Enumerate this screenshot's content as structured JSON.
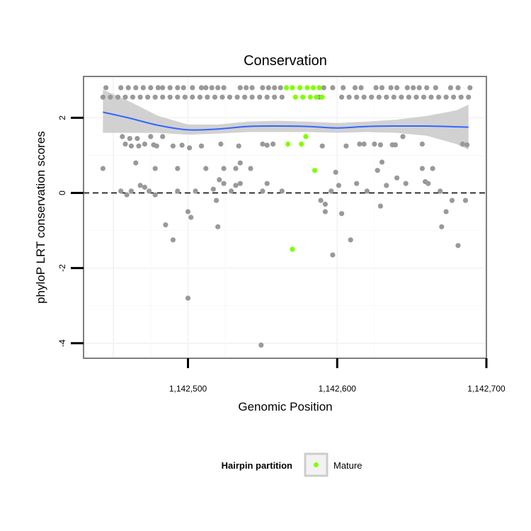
{
  "chart_data": {
    "type": "scatter",
    "title": "Conservation",
    "xlabel": "Genomic Position",
    "ylabel": "phyloP LRT conservation scores",
    "xlim": [
      1142430,
      1142700
    ],
    "ylim": [
      -4.4,
      3.1
    ],
    "x_ticks": [
      {
        "value": 1142500,
        "label": "1,142,500"
      },
      {
        "value": 1142600,
        "label": "1,142,600"
      },
      {
        "value": 1142700,
        "label": "1,142,700"
      }
    ],
    "y_ticks": [
      {
        "value": 2,
        "label": "2"
      },
      {
        "value": 0,
        "label": "0"
      },
      {
        "value": -2,
        "label": "-2"
      },
      {
        "value": -4,
        "label": "-4"
      }
    ],
    "grid": true,
    "reference_line": {
      "y": 0,
      "style": "dashed"
    },
    "legend": {
      "title": "Hairpin partition",
      "position": "bottom",
      "entries": [
        {
          "label": "Mature",
          "color": "#7fff00"
        }
      ]
    },
    "colors": {
      "other": "#999999",
      "mature": "#7fff00",
      "smooth": "#3366ff",
      "band": "#cccccc",
      "panel_border": "#7f7f7f"
    },
    "series": [
      {
        "name": "",
        "color": "#999999",
        "points": [
          [
            1142445,
            2.8
          ],
          [
            1142455,
            2.8
          ],
          [
            1142460,
            2.8
          ],
          [
            1142465,
            2.8
          ],
          [
            1142470,
            2.8
          ],
          [
            1142475,
            2.8
          ],
          [
            1142480,
            2.8
          ],
          [
            1142483,
            2.8
          ],
          [
            1142488,
            2.8
          ],
          [
            1142493,
            2.8
          ],
          [
            1142497,
            2.8
          ],
          [
            1142503,
            2.8
          ],
          [
            1142509,
            2.8
          ],
          [
            1142512,
            2.8
          ],
          [
            1142516,
            2.8
          ],
          [
            1142520,
            2.8
          ],
          [
            1142524,
            2.8
          ],
          [
            1142535,
            2.8
          ],
          [
            1142539,
            2.8
          ],
          [
            1142543,
            2.8
          ],
          [
            1142550,
            2.8
          ],
          [
            1142554,
            2.8
          ],
          [
            1142558,
            2.8
          ],
          [
            1142562,
            2.8
          ],
          [
            1142591,
            2.8
          ],
          [
            1142597,
            2.8
          ],
          [
            1142604,
            2.8
          ],
          [
            1142612,
            2.8
          ],
          [
            1142616,
            2.8
          ],
          [
            1142626,
            2.8
          ],
          [
            1142630,
            2.8
          ],
          [
            1142636,
            2.8
          ],
          [
            1142640,
            2.8
          ],
          [
            1142647,
            2.8
          ],
          [
            1142651,
            2.8
          ],
          [
            1142655,
            2.8
          ],
          [
            1142660,
            2.8
          ],
          [
            1142666,
            2.8
          ],
          [
            1142676,
            2.8
          ],
          [
            1142681,
            2.8
          ],
          [
            1142689,
            2.8
          ],
          [
            1142443,
            2.55
          ],
          [
            1142448,
            2.55
          ],
          [
            1142453,
            2.55
          ],
          [
            1142458,
            2.55
          ],
          [
            1142463,
            2.55
          ],
          [
            1142468,
            2.55
          ],
          [
            1142473,
            2.55
          ],
          [
            1142478,
            2.55
          ],
          [
            1142483,
            2.55
          ],
          [
            1142488,
            2.55
          ],
          [
            1142493,
            2.55
          ],
          [
            1142498,
            2.55
          ],
          [
            1142503,
            2.55
          ],
          [
            1142508,
            2.55
          ],
          [
            1142513,
            2.55
          ],
          [
            1142518,
            2.55
          ],
          [
            1142523,
            2.55
          ],
          [
            1142528,
            2.55
          ],
          [
            1142533,
            2.55
          ],
          [
            1142538,
            2.55
          ],
          [
            1142543,
            2.55
          ],
          [
            1142548,
            2.55
          ],
          [
            1142553,
            2.55
          ],
          [
            1142558,
            2.55
          ],
          [
            1142563,
            2.55
          ],
          [
            1142588,
            2.55
          ],
          [
            1142603,
            2.55
          ],
          [
            1142608,
            2.55
          ],
          [
            1142613,
            2.55
          ],
          [
            1142618,
            2.55
          ],
          [
            1142623,
            2.55
          ],
          [
            1142628,
            2.55
          ],
          [
            1142633,
            2.55
          ],
          [
            1142638,
            2.55
          ],
          [
            1142643,
            2.55
          ],
          [
            1142648,
            2.55
          ],
          [
            1142653,
            2.55
          ],
          [
            1142658,
            2.55
          ],
          [
            1142663,
            2.55
          ],
          [
            1142668,
            2.55
          ],
          [
            1142673,
            2.55
          ],
          [
            1142678,
            2.55
          ],
          [
            1142683,
            2.55
          ],
          [
            1142688,
            2.55
          ],
          [
            1142456,
            1.5
          ],
          [
            1142461,
            1.45
          ],
          [
            1142466,
            1.45
          ],
          [
            1142475,
            1.5
          ],
          [
            1142483,
            1.5
          ],
          [
            1142458,
            1.3
          ],
          [
            1142462,
            1.25
          ],
          [
            1142467,
            1.25
          ],
          [
            1142471,
            1.3
          ],
          [
            1142477,
            1.28
          ],
          [
            1142479,
            1.25
          ],
          [
            1142490,
            1.25
          ],
          [
            1142496,
            1.27
          ],
          [
            1142501,
            1.2
          ],
          [
            1142509,
            1.25
          ],
          [
            1142522,
            1.3
          ],
          [
            1142534,
            1.25
          ],
          [
            1142550,
            1.3
          ],
          [
            1142553,
            1.27
          ],
          [
            1142557,
            1.3
          ],
          [
            1142590,
            1.25
          ],
          [
            1142606,
            1.25
          ],
          [
            1142615,
            1.3
          ],
          [
            1142618,
            1.3
          ],
          [
            1142625,
            1.3
          ],
          [
            1142629,
            1.28
          ],
          [
            1142637,
            1.28
          ],
          [
            1142639,
            1.28
          ],
          [
            1142644,
            1.5
          ],
          [
            1142657,
            1.3
          ],
          [
            1142684,
            1.3
          ],
          [
            1142687,
            1.28
          ],
          [
            1142443,
            0.65
          ],
          [
            1142465,
            0.8
          ],
          [
            1142478,
            0.65
          ],
          [
            1142493,
            0.65
          ],
          [
            1142512,
            0.65
          ],
          [
            1142524,
            0.65
          ],
          [
            1142532,
            0.65
          ],
          [
            1142535,
            0.8
          ],
          [
            1142542,
            0.65
          ],
          [
            1142599,
            0.55
          ],
          [
            1142627,
            0.6
          ],
          [
            1142630,
            0.82
          ],
          [
            1142657,
            0.65
          ],
          [
            1142664,
            0.65
          ],
          [
            1142455,
            0.05
          ],
          [
            1142459,
            -0.05
          ],
          [
            1142462,
            0.05
          ],
          [
            1142468,
            0.2
          ],
          [
            1142471,
            0.15
          ],
          [
            1142474,
            0.05
          ],
          [
            1142478,
            -0.05
          ],
          [
            1142493,
            0.05
          ],
          [
            1142505,
            0.05
          ],
          [
            1142517,
            0.1
          ],
          [
            1142519,
            -0.2
          ],
          [
            1142521,
            0.35
          ],
          [
            1142524,
            0.25
          ],
          [
            1142529,
            0.05
          ],
          [
            1142532,
            0.2
          ],
          [
            1142535,
            0.25
          ],
          [
            1142550,
            0.05
          ],
          [
            1142553,
            0.25
          ],
          [
            1142563,
            0.05
          ],
          [
            1142589,
            -0.2
          ],
          [
            1142592,
            -0.3
          ],
          [
            1142596,
            0.05
          ],
          [
            1142601,
            0.2
          ],
          [
            1142613,
            0.25
          ],
          [
            1142620,
            0.05
          ],
          [
            1142629,
            -0.35
          ],
          [
            1142633,
            0.2
          ],
          [
            1142640,
            0.4
          ],
          [
            1142646,
            0.25
          ],
          [
            1142659,
            0.3
          ],
          [
            1142661,
            0.25
          ],
          [
            1142669,
            0.05
          ],
          [
            1142673,
            -0.5
          ],
          [
            1142677,
            -0.2
          ],
          [
            1142686,
            -0.2
          ],
          [
            1142485,
            -0.85
          ],
          [
            1142490,
            -1.25
          ],
          [
            1142500,
            -0.5
          ],
          [
            1142502,
            -0.65
          ],
          [
            1142520,
            -0.9
          ],
          [
            1142592,
            -0.5
          ],
          [
            1142603,
            -0.55
          ],
          [
            1142609,
            -1.25
          ],
          [
            1142670,
            -0.9
          ],
          [
            1142681,
            -1.4
          ],
          [
            1142597,
            -1.65
          ],
          [
            1142500,
            -2.8
          ],
          [
            1142549,
            -4.05
          ]
        ]
      },
      {
        "name": "Mature",
        "color": "#7fff00",
        "points": [
          [
            1142566,
            2.8
          ],
          [
            1142570,
            2.8
          ],
          [
            1142575,
            2.8
          ],
          [
            1142580,
            2.8
          ],
          [
            1142584,
            2.8
          ],
          [
            1142588,
            2.8
          ],
          [
            1142572,
            2.55
          ],
          [
            1142577,
            2.55
          ],
          [
            1142582,
            2.55
          ],
          [
            1142586,
            2.55
          ],
          [
            1142590,
            2.55
          ],
          [
            1142567,
            1.3
          ],
          [
            1142576,
            1.3
          ],
          [
            1142579,
            1.5
          ],
          [
            1142585,
            0.6
          ],
          [
            1142570,
            -1.5
          ]
        ]
      }
    ],
    "smooth_line": {
      "x": [
        1142443,
        1142460,
        1142480,
        1142500,
        1142520,
        1142540,
        1142560,
        1142580,
        1142600,
        1142620,
        1142640,
        1142660,
        1142680,
        1142688
      ],
      "y": [
        2.15,
        2.0,
        1.8,
        1.68,
        1.7,
        1.77,
        1.78,
        1.77,
        1.73,
        1.77,
        1.78,
        1.78,
        1.76,
        1.75
      ],
      "lower": [
        1.6,
        1.6,
        1.6,
        1.55,
        1.58,
        1.62,
        1.62,
        1.62,
        1.6,
        1.62,
        1.6,
        1.52,
        1.3,
        1.15
      ],
      "upper": [
        2.75,
        2.45,
        2.05,
        1.82,
        1.82,
        1.9,
        1.92,
        1.9,
        1.86,
        1.9,
        1.95,
        2.05,
        2.2,
        2.35
      ]
    }
  }
}
